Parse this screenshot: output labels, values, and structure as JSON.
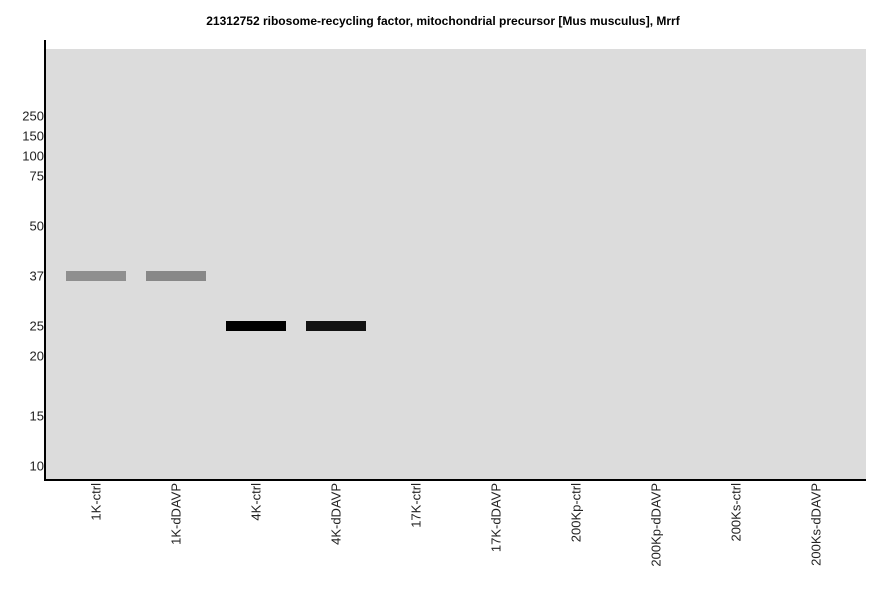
{
  "chart_data": {
    "type": "western-blot",
    "title": "21312752 ribosome-recycling factor, mitochondrial precursor [Mus musculus], Mrrf",
    "xlabel": "",
    "ylabel": "",
    "y_scale": "log",
    "y_ticks": [
      250,
      150,
      100,
      75,
      50,
      37,
      25,
      20,
      15,
      10
    ],
    "lanes": [
      "1K-ctrl",
      "1K-dDAVP",
      "4K-ctrl",
      "4K-dDAVP",
      "17K-ctrl",
      "17K-dDAVP",
      "200Kp-ctrl",
      "200Kp-dDAVP",
      "200Ks-ctrl",
      "200Ks-dDAVP"
    ],
    "bands": [
      {
        "lane": "1K-ctrl",
        "mw": 37,
        "intensity": 0.35
      },
      {
        "lane": "1K-dDAVP",
        "mw": 37,
        "intensity": 0.38
      },
      {
        "lane": "4K-ctrl",
        "mw": 25,
        "intensity": 1.0
      },
      {
        "lane": "4K-dDAVP",
        "mw": 25,
        "intensity": 0.92
      }
    ],
    "background_color": "#dcdcdc",
    "grid": false,
    "legend": "none"
  }
}
